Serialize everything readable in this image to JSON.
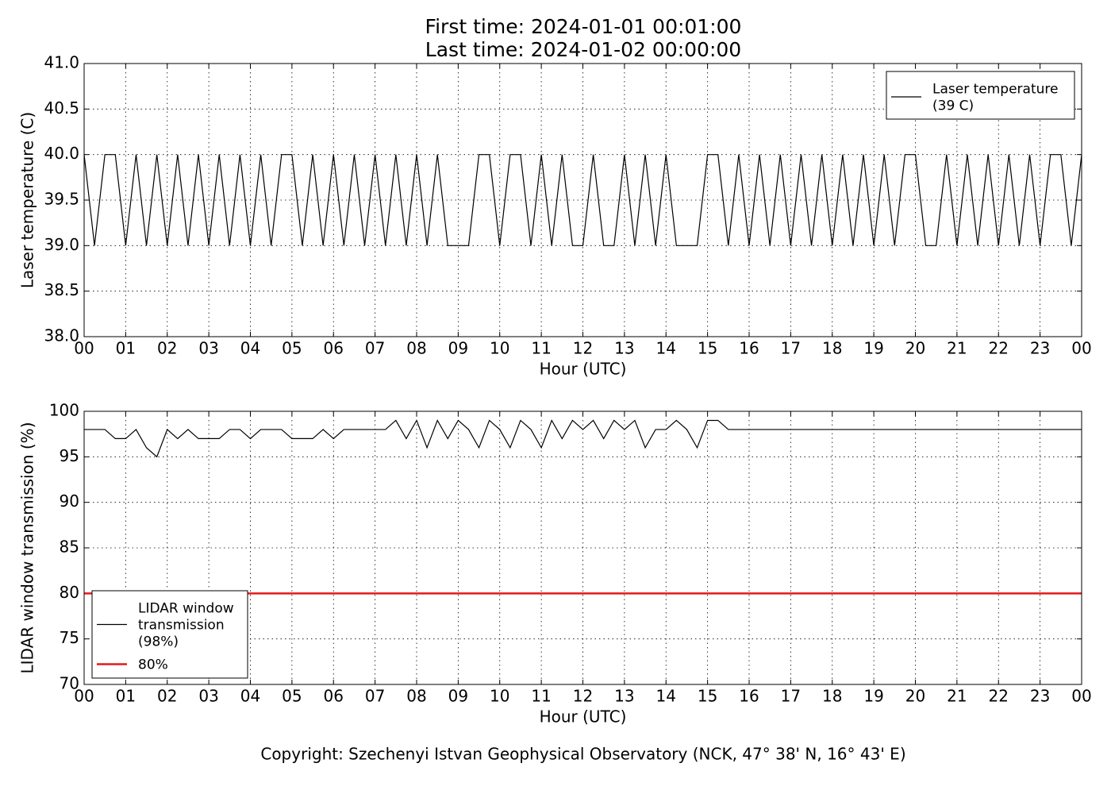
{
  "chart_data": [
    {
      "type": "line",
      "title": "First time: 2024-01-01 00:01:00",
      "subtitle": "Last time: 2024-01-02 00:00:00",
      "ylabel": "Laser temperature (C)",
      "xlabel": "Hour (UTC)",
      "grid": true,
      "legend": "upper right",
      "xlim": [
        0,
        24
      ],
      "ylim": [
        38,
        41
      ],
      "xticks": [
        {
          "value": 0,
          "label": "00"
        },
        {
          "value": 1,
          "label": "01"
        },
        {
          "value": 2,
          "label": "02"
        },
        {
          "value": 3,
          "label": "03"
        },
        {
          "value": 4,
          "label": "04"
        },
        {
          "value": 5,
          "label": "05"
        },
        {
          "value": 6,
          "label": "06"
        },
        {
          "value": 7,
          "label": "07"
        },
        {
          "value": 8,
          "label": "08"
        },
        {
          "value": 9,
          "label": "09"
        },
        {
          "value": 10,
          "label": "10"
        },
        {
          "value": 11,
          "label": "11"
        },
        {
          "value": 12,
          "label": "12"
        },
        {
          "value": 13,
          "label": "13"
        },
        {
          "value": 14,
          "label": "14"
        },
        {
          "value": 15,
          "label": "15"
        },
        {
          "value": 16,
          "label": "16"
        },
        {
          "value": 17,
          "label": "17"
        },
        {
          "value": 18,
          "label": "18"
        },
        {
          "value": 19,
          "label": "19"
        },
        {
          "value": 20,
          "label": "20"
        },
        {
          "value": 21,
          "label": "21"
        },
        {
          "value": 22,
          "label": "22"
        },
        {
          "value": 23,
          "label": "23"
        },
        {
          "value": 24,
          "label": "00"
        }
      ],
      "yticks": [
        {
          "value": 38,
          "label": "38.0"
        },
        {
          "value": 38.5,
          "label": "38.5"
        },
        {
          "value": 39,
          "label": "39.0"
        },
        {
          "value": 39.5,
          "label": "39.5"
        },
        {
          "value": 40,
          "label": "40.0"
        },
        {
          "value": 40.5,
          "label": "40.5"
        },
        {
          "value": 41,
          "label": "41.0"
        }
      ],
      "series": [
        {
          "name": [
            "Laser temperature",
            "(39 C)"
          ],
          "color": "#000000",
          "x": [
            0,
            0.25,
            0.5,
            0.75,
            1,
            1.25,
            1.5,
            1.75,
            2,
            2.25,
            2.5,
            2.75,
            3,
            3.25,
            3.5,
            3.75,
            4,
            4.25,
            4.5,
            4.75,
            5,
            5.25,
            5.5,
            5.75,
            6,
            6.25,
            6.5,
            6.75,
            7,
            7.25,
            7.5,
            7.75,
            8,
            8.25,
            8.5,
            8.75,
            9,
            9.25,
            9.5,
            9.75,
            10,
            10.25,
            10.5,
            10.75,
            11,
            11.25,
            11.5,
            11.75,
            12,
            12.25,
            12.5,
            12.75,
            13,
            13.25,
            13.5,
            13.75,
            14,
            14.25,
            14.5,
            14.75,
            15,
            15.25,
            15.5,
            15.75,
            16,
            16.25,
            16.5,
            16.75,
            17,
            17.25,
            17.5,
            17.75,
            18,
            18.25,
            18.5,
            18.75,
            19,
            19.25,
            19.5,
            19.75,
            20,
            20.25,
            20.5,
            20.75,
            21,
            21.25,
            21.5,
            21.75,
            22,
            22.25,
            22.5,
            22.75,
            23,
            23.25,
            23.5,
            23.75,
            24
          ],
          "values": [
            40,
            39,
            40,
            40,
            39,
            40,
            39,
            40,
            39,
            40,
            39,
            40,
            39,
            40,
            39,
            40,
            39,
            40,
            39,
            40,
            40,
            39,
            40,
            39,
            40,
            39,
            40,
            39,
            40,
            39,
            40,
            39,
            40,
            39,
            40,
            39,
            39,
            39,
            40,
            40,
            39,
            40,
            40,
            39,
            40,
            39,
            40,
            39,
            39,
            40,
            39,
            39,
            40,
            39,
            40,
            39,
            40,
            39,
            39,
            39,
            40,
            40,
            39,
            40,
            39,
            40,
            39,
            40,
            39,
            40,
            39,
            40,
            39,
            40,
            39,
            40,
            39,
            40,
            39,
            40,
            40,
            39,
            39,
            40,
            39,
            40,
            39,
            40,
            39,
            40,
            39,
            40,
            39,
            40,
            40,
            39,
            40
          ]
        }
      ]
    },
    {
      "type": "line",
      "ylabel": "LIDAR window transmission (%)",
      "xlabel": "Hour (UTC)",
      "grid": true,
      "legend": "lower left",
      "xlim": [
        0,
        24
      ],
      "ylim": [
        70,
        100
      ],
      "xticks": [
        {
          "value": 0,
          "label": "00"
        },
        {
          "value": 1,
          "label": "01"
        },
        {
          "value": 2,
          "label": "02"
        },
        {
          "value": 3,
          "label": "03"
        },
        {
          "value": 4,
          "label": "04"
        },
        {
          "value": 5,
          "label": "05"
        },
        {
          "value": 6,
          "label": "06"
        },
        {
          "value": 7,
          "label": "07"
        },
        {
          "value": 8,
          "label": "08"
        },
        {
          "value": 9,
          "label": "09"
        },
        {
          "value": 10,
          "label": "10"
        },
        {
          "value": 11,
          "label": "11"
        },
        {
          "value": 12,
          "label": "12"
        },
        {
          "value": 13,
          "label": "13"
        },
        {
          "value": 14,
          "label": "14"
        },
        {
          "value": 15,
          "label": "15"
        },
        {
          "value": 16,
          "label": "16"
        },
        {
          "value": 17,
          "label": "17"
        },
        {
          "value": 18,
          "label": "18"
        },
        {
          "value": 19,
          "label": "19"
        },
        {
          "value": 20,
          "label": "20"
        },
        {
          "value": 21,
          "label": "21"
        },
        {
          "value": 22,
          "label": "22"
        },
        {
          "value": 23,
          "label": "23"
        },
        {
          "value": 24,
          "label": "00"
        }
      ],
      "yticks": [
        70,
        75,
        80,
        85,
        90,
        95,
        100
      ],
      "series": [
        {
          "name": [
            "LIDAR window",
            "transmission",
            "(98%)"
          ],
          "color": "#000000",
          "x": [
            0,
            0.25,
            0.5,
            0.75,
            1,
            1.25,
            1.5,
            1.75,
            2,
            2.25,
            2.5,
            2.75,
            3,
            3.25,
            3.5,
            3.75,
            4,
            4.25,
            4.5,
            4.75,
            5,
            5.25,
            5.5,
            5.75,
            6,
            6.25,
            6.5,
            6.75,
            7,
            7.25,
            7.5,
            7.75,
            8,
            8.25,
            8.5,
            8.75,
            9,
            9.25,
            9.5,
            9.75,
            10,
            10.25,
            10.5,
            10.75,
            11,
            11.25,
            11.5,
            11.75,
            12,
            12.25,
            12.5,
            12.75,
            13,
            13.25,
            13.5,
            13.75,
            14,
            14.25,
            14.5,
            14.75,
            15,
            15.25,
            15.5,
            15.75,
            16,
            16.25,
            16.5,
            16.75,
            17,
            17.25,
            17.5,
            17.75,
            18,
            18.25,
            18.5,
            18.75,
            19,
            19.25,
            19.5,
            19.75,
            20,
            20.25,
            20.5,
            20.75,
            21,
            21.25,
            21.5,
            21.75,
            22,
            22.25,
            22.5,
            22.75,
            23,
            23.25,
            23.5,
            23.75,
            24
          ],
          "values": [
            98,
            98,
            98,
            97,
            97,
            98,
            96,
            95,
            98,
            97,
            98,
            97,
            97,
            97,
            98,
            98,
            97,
            98,
            98,
            98,
            97,
            97,
            97,
            98,
            97,
            98,
            98,
            98,
            98,
            98,
            99,
            97,
            99,
            96,
            99,
            97,
            99,
            98,
            96,
            99,
            98,
            96,
            99,
            98,
            96,
            99,
            97,
            99,
            98,
            99,
            97,
            99,
            98,
            99,
            96,
            98,
            98,
            99,
            98,
            96,
            99,
            99,
            98,
            98,
            98,
            98,
            98,
            98,
            98,
            98,
            98,
            98,
            98,
            98,
            98,
            98,
            98,
            98,
            98,
            98,
            98,
            98,
            98,
            98,
            98,
            98,
            98,
            98,
            98,
            98,
            98,
            98,
            98,
            98,
            98,
            98,
            98
          ]
        },
        {
          "name": [
            "80%"
          ],
          "color": "#e31a1c",
          "x": [
            0,
            24
          ],
          "values": [
            80,
            80
          ]
        }
      ]
    }
  ],
  "footer": "Copyright: Szechenyi Istvan Geophysical Observatory (NCK, 47° 38' N, 16° 43' E)"
}
